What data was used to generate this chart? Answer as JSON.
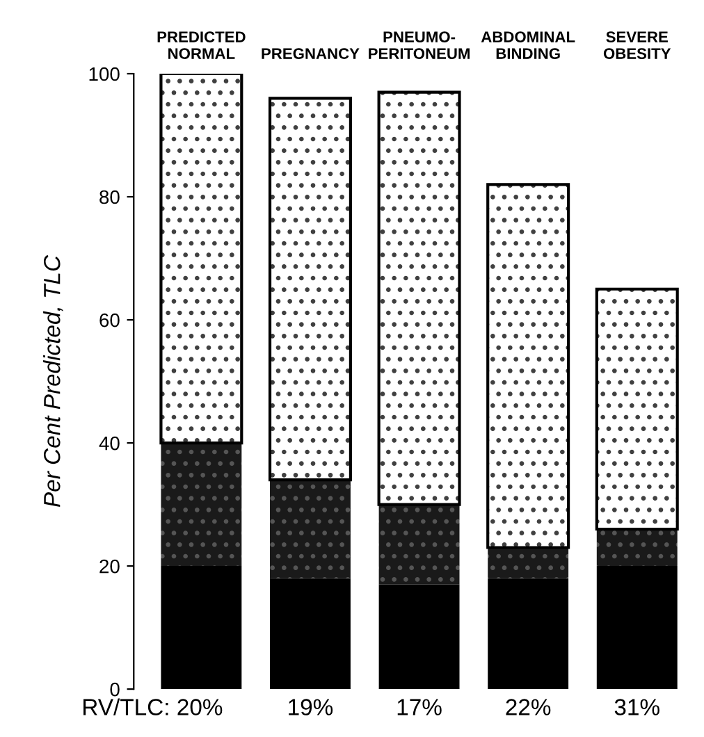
{
  "chart_data": {
    "type": "bar",
    "stacked": true,
    "ylabel": "Per Cent Predicted, TLC",
    "categories": [
      "PREDICTED\nNORMAL",
      "PREGNANCY",
      "PNEUMO-\nPERITONEUM",
      "ABDOMINAL\nBINDING",
      "SEVERE\nOBESITY"
    ],
    "series": [
      {
        "color": "#000000",
        "values": [
          20,
          18,
          17,
          18,
          20
        ]
      },
      {
        "color": "#1a1a1a",
        "values": [
          20,
          16,
          13,
          5,
          6
        ]
      },
      {
        "color": "#ffffff",
        "values": [
          60,
          62,
          67,
          59,
          39
        ]
      }
    ],
    "ylim": [
      0,
      100
    ],
    "yticks": [
      0,
      20,
      40,
      60,
      80,
      100
    ],
    "grid": false,
    "legend": false,
    "annotations": [
      "RV/TLC: 20%",
      "19%",
      "17%",
      "22%",
      "31%"
    ]
  }
}
